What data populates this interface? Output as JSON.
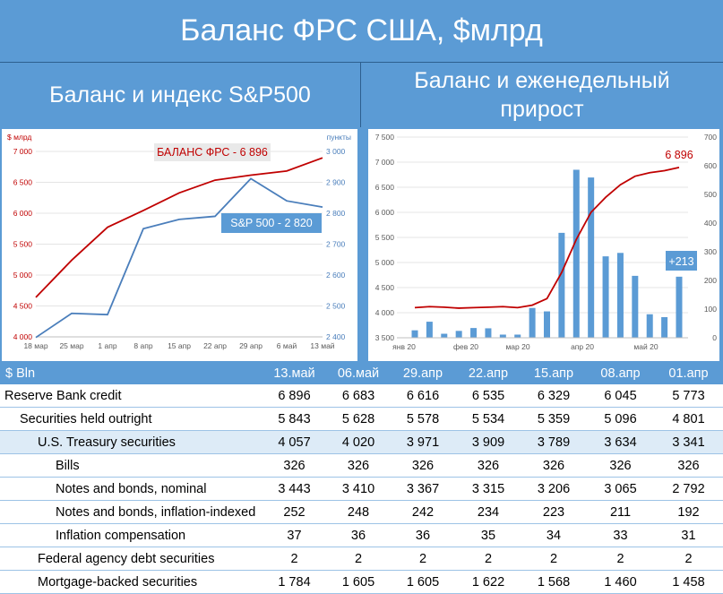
{
  "header": {
    "title": "Баланс ФРС США, $млрд",
    "left_subtitle": "Баланс и индекс S&P500",
    "right_subtitle": "Баланс и еженедельный прирост"
  },
  "chart_data": [
    {
      "type": "line",
      "left_unit": "$ млрд",
      "right_unit": "пункты",
      "categories": [
        "18 мар",
        "25 мар",
        "1 апр",
        "8 апр",
        "15 апр",
        "22 апр",
        "29 апр",
        "6 май",
        "13 май"
      ],
      "series": [
        {
          "name": "БАЛАНС ФРС - 6 896",
          "axis": "left",
          "color": "#c00000",
          "values": [
            4640,
            5240,
            5773,
            6045,
            6329,
            6535,
            6616,
            6683,
            6896
          ]
        },
        {
          "name": "S&P 500 - 2 820",
          "axis": "right",
          "color": "#4a7ebb",
          "values": [
            2398,
            2476,
            2472,
            2750,
            2780,
            2790,
            2912,
            2840,
            2820
          ]
        }
      ],
      "y_left": {
        "min": 4000,
        "max": 7000,
        "ticks": [
          "7 000",
          "6 500",
          "6 000",
          "5 500",
          "5 000",
          "4 500",
          "4 000"
        ]
      },
      "y_right": {
        "min": 2400,
        "max": 3000,
        "ticks": [
          "3 000",
          "2 900",
          "2 800",
          "2 700",
          "2 600",
          "2 500",
          "2 400"
        ]
      },
      "grid": true
    },
    {
      "type": "bar",
      "x_labels": [
        "янв 20",
        "фев 20",
        "мар 20",
        "апр 20",
        "май 20"
      ],
      "bars": {
        "axis": "right",
        "color": "#5b9bd5",
        "values": [
          26,
          56,
          14,
          24,
          34,
          33,
          11,
          11,
          104,
          92,
          366,
          586,
          559,
          284,
          296,
          216,
          82,
          72,
          213
        ]
      },
      "line": {
        "axis": "left",
        "color": "#c00000",
        "values": [
          4100,
          4120,
          4110,
          4090,
          4100,
          4110,
          4120,
          4100,
          4150,
          4280,
          4800,
          5460,
          6000,
          6300,
          6550,
          6720,
          6790,
          6830,
          6896
        ]
      },
      "y_left": {
        "min": 3500,
        "max": 7500,
        "ticks": [
          "7 500",
          "7 000",
          "6 500",
          "6 000",
          "5 500",
          "5 000",
          "4 500",
          "4 000",
          "3 500"
        ]
      },
      "y_right": {
        "min": 0,
        "max": 700,
        "ticks": [
          "700",
          "600",
          "500",
          "400",
          "300",
          "200",
          "100",
          "0"
        ]
      },
      "annotations": {
        "balance": "6 896",
        "last_bar": "+213"
      },
      "grid": true
    }
  ],
  "table": {
    "header": [
      "$ Bln",
      "13.май",
      "06.май",
      "29.апр",
      "22.апр",
      "15.апр",
      "08.апр",
      "01.апр"
    ],
    "rows": [
      {
        "label": "Reserve Bank credit",
        "level": 0,
        "values": [
          "6 896",
          "6 683",
          "6 616",
          "6 535",
          "6 329",
          "6 045",
          "5 773"
        ]
      },
      {
        "label": "Securities held outright",
        "level": 1,
        "values": [
          "5 843",
          "5 628",
          "5 578",
          "5 534",
          "5 359",
          "5 096",
          "4 801"
        ]
      },
      {
        "label": "U.S. Treasury securities",
        "level": 2,
        "highlight": true,
        "values": [
          "4 057",
          "4 020",
          "3 971",
          "3 909",
          "3 789",
          "3 634",
          "3 341"
        ]
      },
      {
        "label": "Bills",
        "level": 3,
        "values": [
          "326",
          "326",
          "326",
          "326",
          "326",
          "326",
          "326"
        ]
      },
      {
        "label": "Notes and bonds, nominal",
        "level": 3,
        "values": [
          "3 443",
          "3 410",
          "3 367",
          "3 315",
          "3 206",
          "3 065",
          "2 792"
        ]
      },
      {
        "label": "Notes and bonds, inflation-indexed",
        "level": 3,
        "values": [
          "252",
          "248",
          "242",
          "234",
          "223",
          "211",
          "192"
        ]
      },
      {
        "label": "Inflation compensation",
        "level": 3,
        "values": [
          "37",
          "36",
          "36",
          "35",
          "34",
          "33",
          "31"
        ]
      },
      {
        "label": "Federal agency debt securities",
        "level": 2,
        "values": [
          "2",
          "2",
          "2",
          "2",
          "2",
          "2",
          "2"
        ]
      },
      {
        "label": "Mortgage-backed securities",
        "level": 2,
        "values": [
          "1 784",
          "1 605",
          "1 605",
          "1 622",
          "1 568",
          "1 460",
          "1 458"
        ]
      }
    ]
  }
}
